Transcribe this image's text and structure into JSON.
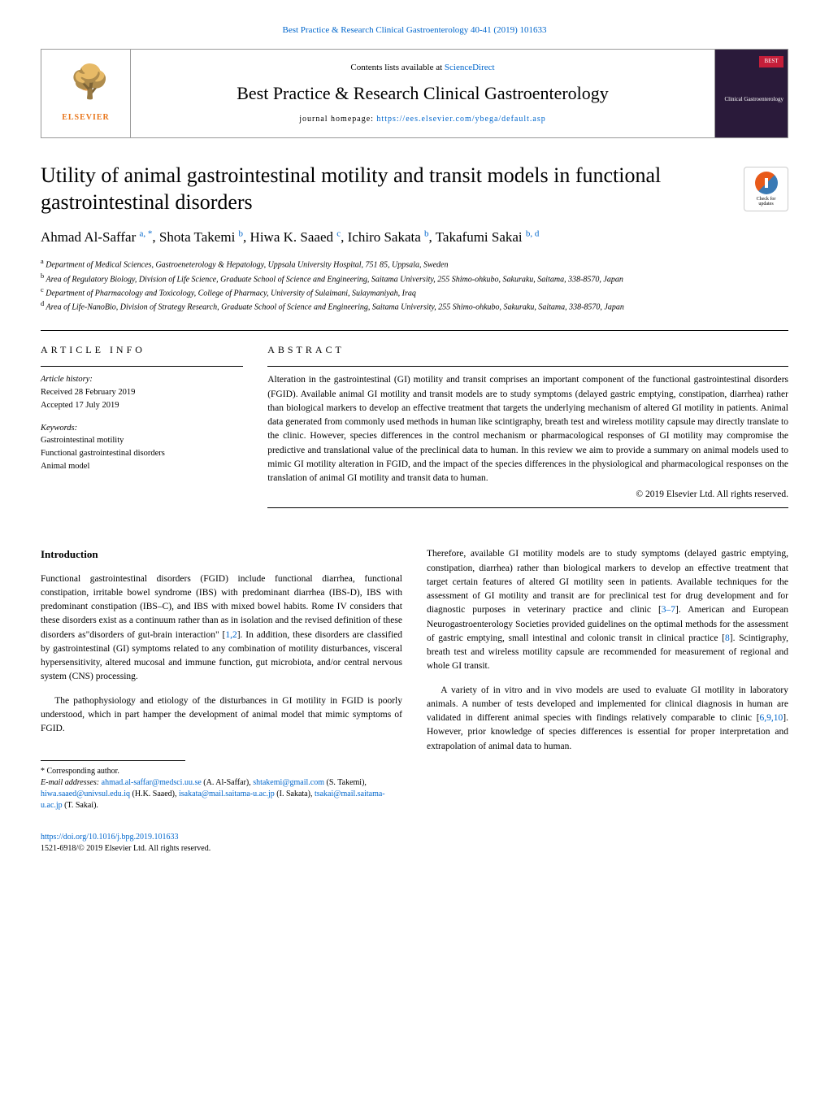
{
  "header": {
    "top_link": "Best Practice & Research Clinical Gastroenterology 40-41 (2019) 101633",
    "contents_text": "Contents lists available at ",
    "contents_link": "ScienceDirect",
    "journal_name": "Best Practice & Research Clinical Gastroenterology",
    "homepage_label": "journal homepage: ",
    "homepage_url": "https://ees.elsevier.com/ybega/default.asp",
    "elsevier": "ELSEVIER",
    "cover_best": "BEST",
    "cover_clinical": "Clinical Gastroenterology"
  },
  "check_updates": {
    "line1": "Check for",
    "line2": "updates"
  },
  "article": {
    "title": "Utility of animal gastrointestinal motility and transit models in functional gastrointestinal disorders",
    "authors_html": "Ahmad Al-Saffar <sup>a, *</sup>, Shota Takemi <sup>b</sup>, Hiwa K. Saaed <sup>c</sup>, Ichiro Sakata <sup>b</sup>, Takafumi Sakai <sup>b, d</sup>",
    "affiliations": {
      "a": "Department of Medical Sciences, Gastroeneterology & Hepatology, Uppsala University Hospital, 751 85, Uppsala, Sweden",
      "b": "Area of Regulatory Biology, Division of Life Science, Graduate School of Science and Engineering, Saitama University, 255 Shimo-ohkubo, Sakuraku, Saitama, 338-8570, Japan",
      "c": "Department of Pharmacology and Toxicology, College of Pharmacy, University of Sulaimani, Sulaymaniyah, Iraq",
      "d": "Area of Life-NanoBio, Division of Strategy Research, Graduate School of Science and Engineering, Saitama University, 255 Shimo-ohkubo, Sakuraku, Saitama, 338-8570, Japan"
    }
  },
  "info": {
    "heading": "ARTICLE INFO",
    "history_label": "Article history:",
    "received": "Received 28 February 2019",
    "accepted": "Accepted 17 July 2019",
    "keywords_label": "Keywords:",
    "keywords": [
      "Gastrointestinal motility",
      "Functional gastrointestinal disorders",
      "Animal model"
    ]
  },
  "abstract": {
    "heading": "ABSTRACT",
    "text": "Alteration in the gastrointestinal (GI) motility and transit comprises an important component of the functional gastrointestinal disorders (FGID). Available animal GI motility and transit models are to study symptoms (delayed gastric emptying, constipation, diarrhea) rather than biological markers to develop an effective treatment that targets the underlying mechanism of altered GI motility in patients. Animal data generated from commonly used methods in human like scintigraphy, breath test and wireless motility capsule may directly translate to the clinic. However, species differences in the control mechanism or pharmacological responses of GI motility may compromise the predictive and translational value of the preclinical data to human. In this review we aim to provide a summary on animal models used to mimic GI motility alteration in FGID, and the impact of the species differences in the physiological and pharmacological responses on the translation of animal GI motility and transit data to human.",
    "copyright": "© 2019 Elsevier Ltd. All rights reserved."
  },
  "body": {
    "intro_heading": "Introduction",
    "left_p1": "Functional gastrointestinal disorders (FGID) include functional diarrhea, functional constipation, irritable bowel syndrome (IBS) with predominant diarrhea (IBS-D), IBS with predominant constipation (IBS–C), and IBS with mixed bowel habits. Rome IV considers that these disorders exist as a continuum rather than as in isolation and the revised definition of these disorders as\"disorders of gut-brain interaction\" [1,2]. In addition, these disorders are classified by gastrointestinal (GI) symptoms related to any combination of motility disturbances, visceral hypersensitivity, altered mucosal and immune function, gut microbiota, and/or central nervous system (CNS) processing.",
    "left_p2": "The pathophysiology and etiology of the disturbances in GI motility in FGID is poorly understood, which in part hamper the development of animal model that mimic symptoms of FGID.",
    "right_p1": "Therefore, available GI motility models are to study symptoms (delayed gastric emptying, constipation, diarrhea) rather than biological markers to develop an effective treatment that target certain features of altered GI motility seen in patients. Available techniques for the assessment of GI motility and transit are for preclinical test for drug development and for diagnostic purposes in veterinary practice and clinic [3–7]. American and European Neurogastroenterology Societies provided guidelines on the optimal methods for the assessment of gastric emptying, small intestinal and colonic transit in clinical practice [8]. Scintigraphy, breath test and wireless motility capsule are recommended for measurement of regional and whole GI transit.",
    "right_p2": "A variety of in vitro and in vivo models are used to evaluate GI motility in laboratory animals. A number of tests developed and implemented for clinical diagnosis in human are validated in different animal species with findings relatively comparable to clinic [6,9,10]. However, prior knowledge of species differences is essential for proper interpretation and extrapolation of animal data to human."
  },
  "footnote": {
    "corresponding": "* Corresponding author.",
    "email_label": "E-mail addresses: ",
    "emails": "ahmad.al-saffar@medsci.uu.se (A. Al-Saffar), shtakemi@gmail.com (S. Takemi), hiwa.saaed@univsul.edu.iq (H.K. Saaed), isakata@mail.saitama-u.ac.jp (I. Sakata), tsakai@mail.saitama-u.ac.jp (T. Sakai)."
  },
  "footer": {
    "doi": "https://doi.org/10.1016/j.bpg.2019.101633",
    "issn_copyright": "1521-6918/© 2019 Elsevier Ltd. All rights reserved."
  },
  "colors": {
    "link": "#0066cc",
    "elsevier_orange": "#e8751a",
    "cover_bg": "#2a1a3a",
    "cover_red": "#c41e3a"
  }
}
